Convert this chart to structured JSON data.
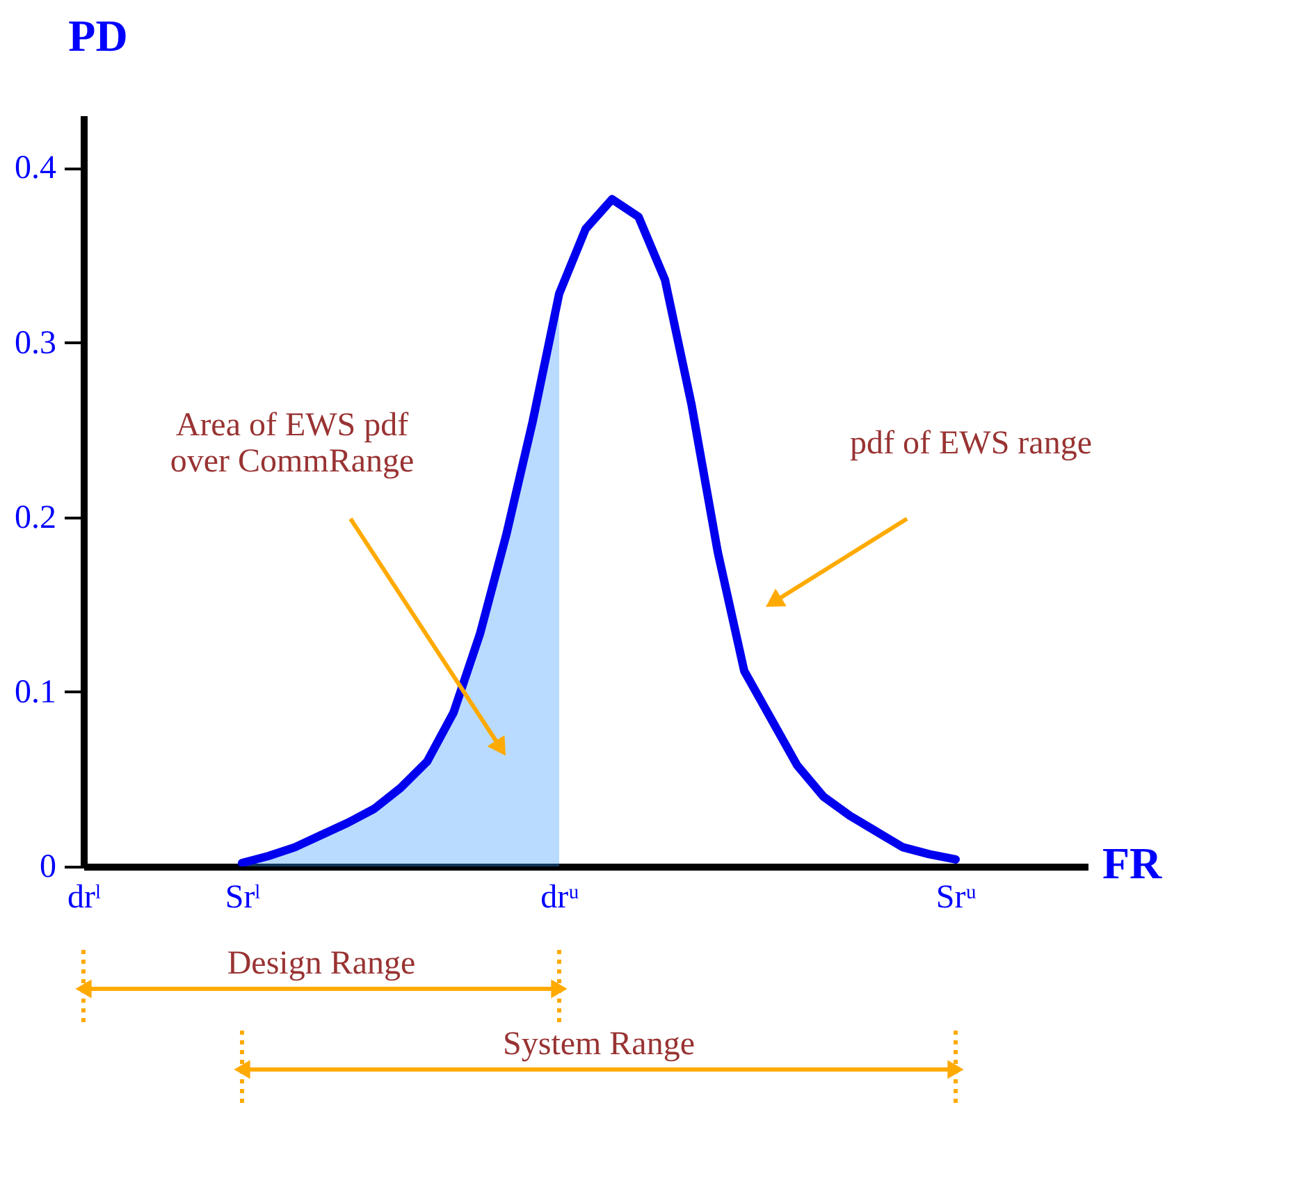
{
  "chart_data": {
    "type": "line",
    "xlabel": "FR",
    "ylabel": "PD",
    "categories": [
      "drˡ",
      null,
      null,
      null,
      null,
      null,
      "Srˡ",
      null,
      null,
      null,
      null,
      null,
      null,
      null,
      null,
      null,
      null,
      null,
      "drᵘ",
      null,
      null,
      null,
      null,
      null,
      null,
      null,
      null,
      null,
      null,
      null,
      null,
      null,
      null,
      "Srᵘ",
      null,
      null,
      null,
      null,
      null
    ],
    "ylim": [
      0,
      0.43
    ],
    "yticks": [
      0,
      0.1,
      0.2,
      0.3,
      0.4
    ],
    "series": [
      {
        "type": "area",
        "color": "#3399ff",
        "values": [
          null,
          null,
          null,
          null,
          null,
          null,
          0.002,
          0.006,
          0.011,
          0.018,
          0.025,
          0.033,
          0.045,
          0.06,
          0.088,
          0.133,
          0.19,
          0.255,
          0.328,
          null,
          null,
          null,
          null,
          null,
          null,
          null,
          null,
          null,
          null,
          null,
          null,
          null,
          null,
          null,
          null,
          null,
          null,
          null,
          null
        ]
      },
      {
        "color": "#0000ee",
        "values": [
          null,
          null,
          null,
          null,
          null,
          null,
          0.002,
          0.006,
          0.011,
          0.018,
          0.025,
          0.033,
          0.045,
          0.06,
          0.088,
          0.133,
          0.19,
          0.255,
          0.328,
          0.365,
          0.382,
          0.372,
          0.336,
          0.265,
          0.18,
          0.112,
          0.085,
          0.058,
          0.04,
          0.029,
          0.02,
          0.011,
          0.007,
          0.004,
          null,
          null,
          null,
          null,
          null
        ]
      }
    ],
    "annotations": [
      "Area of EWS pdf\nover CommRange",
      "pdf of EWS range",
      "Design Range",
      "System Range"
    ],
    "grid": false,
    "line_style": "solid",
    "marker": "none"
  }
}
